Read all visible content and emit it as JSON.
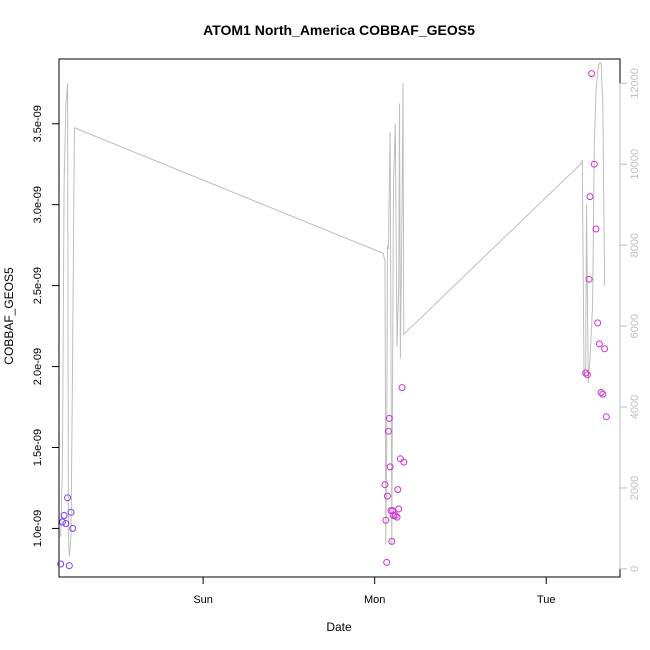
{
  "chart_data": {
    "type": "scatter",
    "title": "ATOM1 North_America COBBAF_GEOS5",
    "xlabel": "Date",
    "ylabel": "COBBAF_GEOS5",
    "xlim": [
      -0.34,
      2.93
    ],
    "ylim": [
      7e-10,
      3.9e-09
    ],
    "y2lim": [
      -200,
      12600
    ],
    "x_ticks": [
      {
        "value": 0.5,
        "label": "Sun"
      },
      {
        "value": 1.5,
        "label": "Mon"
      },
      {
        "value": 2.5,
        "label": "Tue"
      }
    ],
    "y_ticks": [
      {
        "value": 1e-09,
        "label": "1.0e-09"
      },
      {
        "value": 1.5e-09,
        "label": "1.5e-09"
      },
      {
        "value": 2e-09,
        "label": "2.0e-09"
      },
      {
        "value": 2.5e-09,
        "label": "2.5e-09"
      },
      {
        "value": 3e-09,
        "label": "3.0e-09"
      },
      {
        "value": 3.5e-09,
        "label": "3.5e-09"
      }
    ],
    "y2_ticks": [
      {
        "value": 0,
        "label": "0"
      },
      {
        "value": 2000,
        "label": "2000"
      },
      {
        "value": 4000,
        "label": "4000"
      },
      {
        "value": 6000,
        "label": "6000"
      },
      {
        "value": 8000,
        "label": "8000"
      },
      {
        "value": 10000,
        "label": "10000"
      },
      {
        "value": 12000,
        "label": "12000"
      }
    ],
    "points": [
      {
        "x": -0.33,
        "y": 7.8e-10,
        "color": "#7a3cf0"
      },
      {
        "x": -0.32,
        "y": 1.04e-09,
        "color": "#7a3cf0"
      },
      {
        "x": -0.31,
        "y": 1.08e-09,
        "color": "#7a3cf0"
      },
      {
        "x": -0.3,
        "y": 1.03e-09,
        "color": "#7a3cf0"
      },
      {
        "x": -0.29,
        "y": 1.19e-09,
        "color": "#7a3cf0"
      },
      {
        "x": -0.28,
        "y": 7.7e-10,
        "color": "#7a3cf0"
      },
      {
        "x": -0.27,
        "y": 1.1e-09,
        "color": "#7a3cf0"
      },
      {
        "x": -0.26,
        "y": 1e-09,
        "color": "#7a3cf0"
      },
      {
        "x": 1.56,
        "y": 1.27e-09,
        "color": "#d42fd4"
      },
      {
        "x": 1.565,
        "y": 1.05e-09,
        "color": "#d42fd4"
      },
      {
        "x": 1.57,
        "y": 7.9e-10,
        "color": "#d42fd4"
      },
      {
        "x": 1.575,
        "y": 1.2e-09,
        "color": "#d42fd4"
      },
      {
        "x": 1.58,
        "y": 1.6e-09,
        "color": "#d42fd4"
      },
      {
        "x": 1.585,
        "y": 1.68e-09,
        "color": "#d42fd4"
      },
      {
        "x": 1.59,
        "y": 1.38e-09,
        "color": "#d42fd4"
      },
      {
        "x": 1.595,
        "y": 1.11e-09,
        "color": "#d42fd4"
      },
      {
        "x": 1.6,
        "y": 9.2e-10,
        "color": "#d42fd4"
      },
      {
        "x": 1.605,
        "y": 1.11e-09,
        "color": "#d42fd4"
      },
      {
        "x": 1.61,
        "y": 1.08e-09,
        "color": "#d42fd4"
      },
      {
        "x": 1.62,
        "y": 1.08e-09,
        "color": "#d42fd4"
      },
      {
        "x": 1.63,
        "y": 1.07e-09,
        "color": "#d42fd4"
      },
      {
        "x": 1.635,
        "y": 1.24e-09,
        "color": "#d42fd4"
      },
      {
        "x": 1.64,
        "y": 1.12e-09,
        "color": "#d42fd4"
      },
      {
        "x": 1.65,
        "y": 1.43e-09,
        "color": "#d42fd4"
      },
      {
        "x": 1.66,
        "y": 1.87e-09,
        "color": "#d42fd4"
      },
      {
        "x": 1.67,
        "y": 1.41e-09,
        "color": "#d42fd4"
      },
      {
        "x": 2.73,
        "y": 1.96e-09,
        "color": "#d42fd4"
      },
      {
        "x": 2.74,
        "y": 1.95e-09,
        "color": "#d42fd4"
      },
      {
        "x": 2.75,
        "y": 2.54e-09,
        "color": "#d42fd4"
      },
      {
        "x": 2.755,
        "y": 3.05e-09,
        "color": "#d42fd4"
      },
      {
        "x": 2.765,
        "y": 3.81e-09,
        "color": "#d42fd4"
      },
      {
        "x": 2.78,
        "y": 3.25e-09,
        "color": "#d42fd4"
      },
      {
        "x": 2.79,
        "y": 2.85e-09,
        "color": "#d42fd4"
      },
      {
        "x": 2.8,
        "y": 2.27e-09,
        "color": "#d42fd4"
      },
      {
        "x": 2.81,
        "y": 2.14e-09,
        "color": "#d42fd4"
      },
      {
        "x": 2.82,
        "y": 1.84e-09,
        "color": "#d42fd4"
      },
      {
        "x": 2.83,
        "y": 1.83e-09,
        "color": "#d42fd4"
      },
      {
        "x": 2.84,
        "y": 2.11e-09,
        "color": "#d42fd4"
      },
      {
        "x": 2.85,
        "y": 1.69e-09,
        "color": "#d42fd4"
      }
    ],
    "line_y2": [
      [
        -0.33,
        800
      ],
      [
        -0.32,
        2500
      ],
      [
        -0.31,
        9500
      ],
      [
        -0.3,
        11500
      ],
      [
        -0.29,
        12000
      ],
      [
        -0.285,
        800
      ],
      [
        -0.28,
        300
      ],
      [
        -0.27,
        800
      ],
      [
        -0.26,
        5500
      ],
      [
        -0.25,
        10900
      ],
      [
        1.55,
        7800
      ],
      [
        1.56,
        7600
      ],
      [
        1.565,
        600
      ],
      [
        1.57,
        3000
      ],
      [
        1.575,
        8000
      ],
      [
        1.58,
        7900
      ],
      [
        1.59,
        10800
      ],
      [
        1.6,
        600
      ],
      [
        1.61,
        9500
      ],
      [
        1.62,
        11000
      ],
      [
        1.63,
        5500
      ],
      [
        1.64,
        7000
      ],
      [
        1.645,
        11500
      ],
      [
        1.65,
        5200
      ],
      [
        1.66,
        9000
      ],
      [
        1.665,
        12000
      ],
      [
        1.67,
        5800
      ],
      [
        2.7,
        10000
      ],
      [
        2.71,
        10100
      ],
      [
        2.72,
        4800
      ],
      [
        2.73,
        5000
      ],
      [
        2.735,
        9000
      ],
      [
        2.745,
        4600
      ],
      [
        2.755,
        5200
      ],
      [
        2.77,
        6500
      ],
      [
        2.78,
        10500
      ],
      [
        2.79,
        11800
      ],
      [
        2.8,
        12300
      ],
      [
        2.81,
        12500
      ],
      [
        2.82,
        12500
      ],
      [
        2.83,
        11500
      ],
      [
        2.84,
        7000
      ]
    ],
    "line_color": "#bebebe",
    "grid": false
  }
}
